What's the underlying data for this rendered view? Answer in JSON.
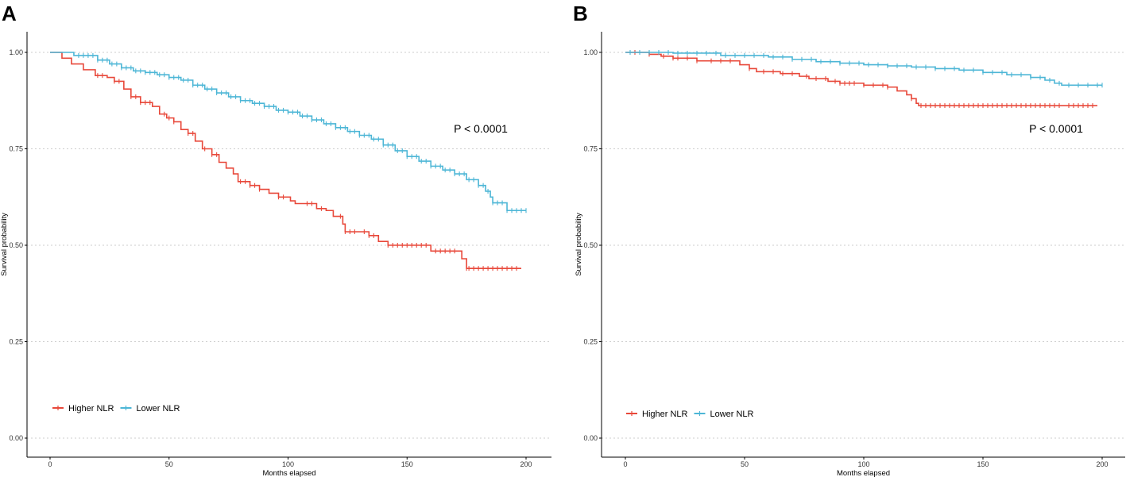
{
  "chart_data": [
    {
      "panel": "A",
      "type": "line",
      "subtype": "kaplan-meier",
      "xlabel": "Months elapsed",
      "ylabel": "Survival probability",
      "xlim": [
        0,
        200
      ],
      "ylim": [
        0,
        1
      ],
      "xticks": [
        "0",
        "50",
        "100",
        "150",
        "200"
      ],
      "yticks": [
        "0.00",
        "0.25",
        "0.50",
        "0.75",
        "1.00"
      ],
      "grid": "horizontal dotted",
      "annotation": "P < 0.0001",
      "legend_position": "bottom-left",
      "series": [
        {
          "name": "Higher NLR",
          "color": "#e8483a",
          "points": [
            [
              0,
              1.0
            ],
            [
              5,
              0.985
            ],
            [
              9,
              0.97
            ],
            [
              14,
              0.955
            ],
            [
              19,
              0.94
            ],
            [
              24,
              0.935
            ],
            [
              27,
              0.925
            ],
            [
              31,
              0.905
            ],
            [
              34,
              0.885
            ],
            [
              38,
              0.87
            ],
            [
              43,
              0.86
            ],
            [
              46,
              0.84
            ],
            [
              49,
              0.83
            ],
            [
              52,
              0.82
            ],
            [
              55,
              0.8
            ],
            [
              58,
              0.79
            ],
            [
              61,
              0.77
            ],
            [
              64,
              0.75
            ],
            [
              68,
              0.735
            ],
            [
              71,
              0.715
            ],
            [
              74,
              0.7
            ],
            [
              77,
              0.685
            ],
            [
              79,
              0.665
            ],
            [
              84,
              0.655
            ],
            [
              88,
              0.645
            ],
            [
              92,
              0.635
            ],
            [
              96,
              0.625
            ],
            [
              101,
              0.615
            ],
            [
              103,
              0.608
            ],
            [
              112,
              0.595
            ],
            [
              116,
              0.59
            ],
            [
              119,
              0.575
            ],
            [
              123,
              0.555
            ],
            [
              124,
              0.535
            ],
            [
              134,
              0.525
            ],
            [
              138,
              0.51
            ],
            [
              142,
              0.5
            ],
            [
              160,
              0.485
            ],
            [
              173,
              0.465
            ],
            [
              175,
              0.44
            ],
            [
              198,
              0.44
            ]
          ],
          "censor_x": [
            20,
            22,
            27,
            29,
            34,
            36,
            38,
            40,
            42,
            48,
            50,
            52,
            58,
            60,
            65,
            68,
            70,
            80,
            82,
            84,
            86,
            88,
            96,
            98,
            108,
            110,
            114,
            122,
            124,
            126,
            128,
            132,
            134,
            136,
            142,
            144,
            146,
            148,
            150,
            152,
            154,
            156,
            158,
            162,
            164,
            166,
            168,
            170,
            175,
            176,
            178,
            180,
            182,
            184,
            186,
            188,
            190,
            192,
            194,
            196
          ]
        },
        {
          "name": "Lower NLR",
          "color": "#4db6d6",
          "points": [
            [
              0,
              1.0
            ],
            [
              10,
              0.992
            ],
            [
              20,
              0.98
            ],
            [
              25,
              0.97
            ],
            [
              30,
              0.96
            ],
            [
              35,
              0.952
            ],
            [
              40,
              0.948
            ],
            [
              45,
              0.942
            ],
            [
              50,
              0.935
            ],
            [
              55,
              0.928
            ],
            [
              60,
              0.915
            ],
            [
              65,
              0.905
            ],
            [
              70,
              0.895
            ],
            [
              75,
              0.885
            ],
            [
              80,
              0.875
            ],
            [
              85,
              0.868
            ],
            [
              90,
              0.86
            ],
            [
              95,
              0.85
            ],
            [
              100,
              0.845
            ],
            [
              105,
              0.835
            ],
            [
              110,
              0.825
            ],
            [
              115,
              0.815
            ],
            [
              120,
              0.805
            ],
            [
              125,
              0.795
            ],
            [
              130,
              0.785
            ],
            [
              135,
              0.775
            ],
            [
              140,
              0.76
            ],
            [
              145,
              0.745
            ],
            [
              150,
              0.73
            ],
            [
              155,
              0.718
            ],
            [
              160,
              0.705
            ],
            [
              165,
              0.695
            ],
            [
              170,
              0.685
            ],
            [
              175,
              0.67
            ],
            [
              180,
              0.655
            ],
            [
              183,
              0.64
            ],
            [
              185,
              0.625
            ],
            [
              186,
              0.61
            ],
            [
              192,
              0.59
            ],
            [
              200,
              0.59
            ]
          ],
          "censor_x": [
            12,
            14,
            16,
            18,
            20,
            22,
            24,
            26,
            28,
            30,
            32,
            34,
            36,
            38,
            40,
            42,
            44,
            46,
            48,
            50,
            52,
            54,
            56,
            58,
            60,
            62,
            64,
            66,
            68,
            70,
            72,
            74,
            76,
            78,
            80,
            82,
            84,
            86,
            88,
            90,
            92,
            94,
            96,
            98,
            100,
            102,
            104,
            106,
            108,
            110,
            112,
            114,
            116,
            118,
            120,
            122,
            124,
            126,
            128,
            130,
            132,
            134,
            136,
            138,
            140,
            142,
            144,
            146,
            148,
            150,
            152,
            154,
            156,
            158,
            160,
            162,
            164,
            166,
            168,
            170,
            172,
            174,
            176,
            178,
            180,
            182,
            184,
            186,
            188,
            190,
            192,
            194,
            196,
            198,
            200
          ]
        }
      ]
    },
    {
      "panel": "B",
      "type": "line",
      "subtype": "kaplan-meier",
      "xlabel": "Months elapsed",
      "ylabel": "Survival probability",
      "xlim": [
        0,
        200
      ],
      "ylim": [
        0,
        1
      ],
      "xticks": [
        "0",
        "50",
        "100",
        "150",
        "200"
      ],
      "yticks": [
        "0.00",
        "0.25",
        "0.50",
        "0.75",
        "1.00"
      ],
      "grid": "horizontal dotted",
      "annotation": "P < 0.0001",
      "legend_position": "bottom-left",
      "series": [
        {
          "name": "Higher NLR",
          "color": "#e8483a",
          "points": [
            [
              0,
              1.0
            ],
            [
              10,
              0.995
            ],
            [
              15,
              0.99
            ],
            [
              20,
              0.985
            ],
            [
              30,
              0.978
            ],
            [
              48,
              0.968
            ],
            [
              52,
              0.958
            ],
            [
              55,
              0.95
            ],
            [
              65,
              0.945
            ],
            [
              73,
              0.938
            ],
            [
              77,
              0.932
            ],
            [
              85,
              0.925
            ],
            [
              90,
              0.92
            ],
            [
              100,
              0.915
            ],
            [
              110,
              0.91
            ],
            [
              114,
              0.9
            ],
            [
              118,
              0.89
            ],
            [
              120,
              0.88
            ],
            [
              122,
              0.868
            ],
            [
              123,
              0.862
            ],
            [
              198,
              0.862
            ]
          ],
          "censor_x": [
            4,
            10,
            16,
            20,
            22,
            26,
            30,
            36,
            40,
            44,
            52,
            58,
            62,
            66,
            70,
            76,
            80,
            84,
            88,
            90,
            92,
            94,
            96,
            100,
            104,
            108,
            110,
            120,
            124,
            126,
            128,
            130,
            132,
            134,
            136,
            138,
            140,
            142,
            144,
            146,
            148,
            150,
            152,
            154,
            156,
            158,
            160,
            162,
            164,
            166,
            168,
            170,
            172,
            174,
            176,
            178,
            180,
            182,
            186,
            188,
            190,
            192,
            194,
            196
          ]
        },
        {
          "name": "Lower NLR",
          "color": "#4db6d6",
          "points": [
            [
              0,
              1.0
            ],
            [
              20,
              0.998
            ],
            [
              40,
              0.992
            ],
            [
              60,
              0.988
            ],
            [
              70,
              0.982
            ],
            [
              80,
              0.976
            ],
            [
              90,
              0.972
            ],
            [
              100,
              0.968
            ],
            [
              110,
              0.965
            ],
            [
              120,
              0.962
            ],
            [
              130,
              0.958
            ],
            [
              140,
              0.954
            ],
            [
              150,
              0.948
            ],
            [
              160,
              0.942
            ],
            [
              170,
              0.935
            ],
            [
              176,
              0.928
            ],
            [
              180,
              0.92
            ],
            [
              183,
              0.915
            ],
            [
              200,
              0.915
            ]
          ],
          "censor_x": [
            2,
            6,
            10,
            14,
            18,
            22,
            26,
            30,
            34,
            38,
            42,
            46,
            50,
            54,
            58,
            62,
            66,
            70,
            74,
            78,
            82,
            86,
            90,
            94,
            98,
            102,
            106,
            110,
            114,
            118,
            122,
            126,
            130,
            134,
            138,
            142,
            146,
            150,
            154,
            158,
            162,
            166,
            170,
            174,
            178,
            182,
            186,
            190,
            194,
            198,
            200
          ]
        }
      ]
    }
  ]
}
